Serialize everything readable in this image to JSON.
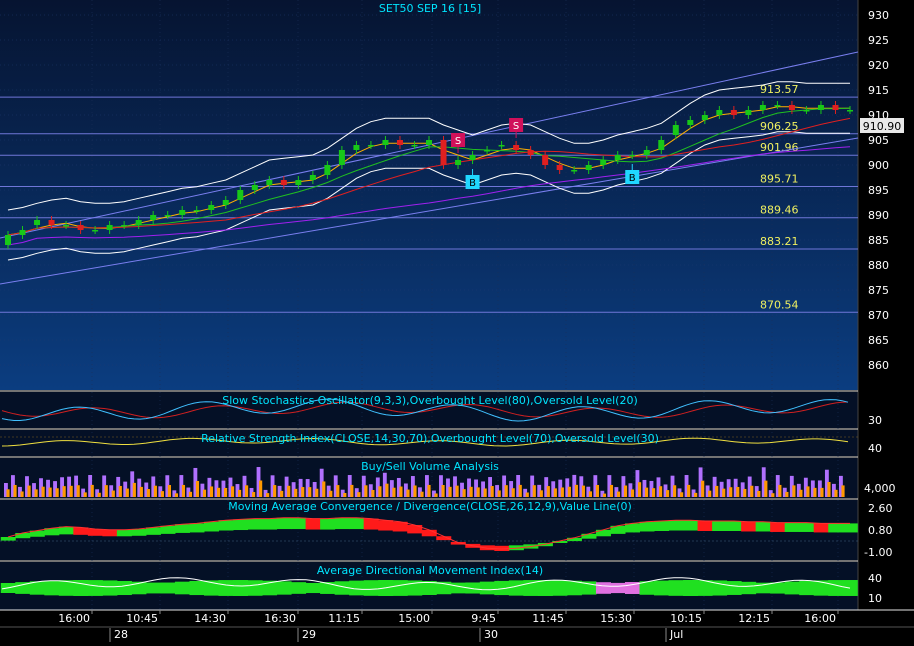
{
  "chart_title": "SET50 SEP 16  [15]",
  "colors": {
    "price_bg_top": "#06142e",
    "price_bg_bottom": "#0a3a78",
    "panel_bg": "#050d1f",
    "grid": "#1f3a70",
    "level_line": "#6f76d8",
    "level_text": "#f0f060",
    "title_text": "#00e5ff",
    "axis_text": "#ffffff",
    "up_candle": "#18c818",
    "down_candle": "#e02020",
    "bollinger": "#ffffff",
    "ma_fast": "#ffb000",
    "ma_mid": "#20c020",
    "ma_slow": "#e02020",
    "ma_purple": "#a020f0",
    "sell_marker": "#d0105a",
    "buy_marker": "#20d8ff"
  },
  "price_panel": {
    "ylim": [
      855,
      933
    ],
    "ticks": [
      "930",
      "925",
      "920",
      "915",
      "910",
      "905",
      "900",
      "895",
      "890",
      "885",
      "880",
      "875",
      "870",
      "865",
      "860"
    ],
    "last_price": "910.90",
    "levels": [
      {
        "label": "913.57",
        "value": 913.57
      },
      {
        "label": "906.25",
        "value": 906.25
      },
      {
        "label": "901.96",
        "value": 901.96
      },
      {
        "label": "895.71",
        "value": 895.71
      },
      {
        "label": "889.46",
        "value": 889.46
      },
      {
        "label": "883.21",
        "value": 883.21
      },
      {
        "label": "870.54",
        "value": 870.54
      }
    ],
    "markers": [
      {
        "type": "S",
        "index": 31
      },
      {
        "type": "S",
        "index": 35
      },
      {
        "type": "B",
        "index": 32
      },
      {
        "type": "B",
        "index": 43
      }
    ]
  },
  "stochastic_panel": {
    "title": "Slow Stochastics Oscillator(9,3,3),Overbought Level(80),Oversold Level(20)",
    "tick": "30"
  },
  "rsi_panel": {
    "title": "Relative Strength Index(CLOSE,14,30,70),Overbought Level(70),Oversold Level(30)",
    "tick": "40"
  },
  "volume_panel": {
    "title": "Buy/Sell Volume Analysis",
    "tick": "4,000"
  },
  "macd_panel": {
    "title": "Moving Average Convergence / Divergence(CLOSE,26,12,9),Value Line(0)",
    "ticks": [
      "2.60",
      "0.80",
      "-1.00"
    ]
  },
  "adx_panel": {
    "title": "Average Directional Movement Index(14)",
    "ticks": [
      "40",
      "10"
    ]
  },
  "x_axis": {
    "times": [
      "16:00",
      "10:45",
      "14:30",
      "16:30",
      "11:15",
      "15:00",
      "9:45",
      "11:45",
      "15:30",
      "10:15",
      "12:15",
      "16:00"
    ],
    "days": [
      "28",
      "29",
      "30",
      "Jul"
    ]
  },
  "chart_data": {
    "type": "candlestick",
    "title": "SET50 SEP 16  [15]",
    "interval": "15",
    "ylim": [
      855,
      933
    ],
    "close": [
      886,
      887,
      889,
      888,
      888,
      887,
      887,
      888,
      888,
      889,
      890,
      890,
      891,
      891,
      892,
      893,
      895,
      896,
      897,
      896,
      897,
      898,
      900,
      903,
      904,
      904,
      905,
      904,
      904,
      905,
      900,
      901,
      902,
      903,
      904,
      903,
      902,
      900,
      899,
      899,
      900,
      901,
      902,
      902,
      903,
      905,
      908,
      909,
      910,
      911,
      910,
      911,
      912,
      912,
      911,
      911,
      912,
      911,
      911
    ],
    "open": [
      884,
      886,
      888,
      889,
      888,
      888,
      887,
      887,
      888,
      888,
      889,
      890,
      890,
      891,
      891,
      892,
      893,
      895,
      896,
      897,
      896,
      897,
      898,
      900,
      903,
      904,
      904,
      905,
      904,
      904,
      905,
      900,
      901,
      903,
      904,
      904,
      903,
      902,
      900,
      899,
      899,
      900,
      901,
      902,
      902,
      903,
      906,
      908,
      909,
      910,
      911,
      910,
      911,
      912,
      912,
      911,
      911,
      912,
      911
    ],
    "levels": [
      913.57,
      906.25,
      901.96,
      895.71,
      889.46,
      883.21,
      870.54
    ],
    "last": 910.9,
    "volume": [
      2,
      3,
      3,
      2,
      2,
      2,
      2,
      3,
      3,
      2,
      3,
      2,
      2,
      3,
      3,
      2,
      3,
      4,
      3,
      3,
      2,
      3,
      4,
      3,
      3,
      2,
      3,
      3,
      2,
      3,
      4,
      3,
      3,
      2,
      3,
      4,
      3,
      2,
      2,
      3,
      2,
      3,
      3,
      3,
      2,
      3,
      4,
      3,
      2,
      3,
      3,
      2,
      3,
      3,
      2,
      3,
      3,
      2,
      2
    ],
    "macd": [
      0.5,
      1.0,
      1.3,
      1.6,
      1.8,
      1.7,
      1.5,
      1.4,
      1.4,
      1.5,
      1.7,
      1.9,
      2.1,
      2.2,
      2.4,
      2.6,
      2.7,
      2.8,
      2.8,
      2.9,
      2.9,
      2.8,
      2.8,
      2.9,
      2.9,
      2.8,
      2.6,
      2.4,
      2.0,
      1.4,
      0.6,
      -0.2,
      -0.6,
      -0.9,
      -1.0,
      -0.9,
      -0.7,
      -0.4,
      0.0,
      0.4,
      0.9,
      1.4,
      1.9,
      2.2,
      2.4,
      2.5,
      2.6,
      2.6,
      2.5,
      2.5,
      2.5,
      2.4,
      2.4,
      2.3,
      2.3,
      2.3,
      2.2,
      2.2,
      2.2
    ]
  }
}
